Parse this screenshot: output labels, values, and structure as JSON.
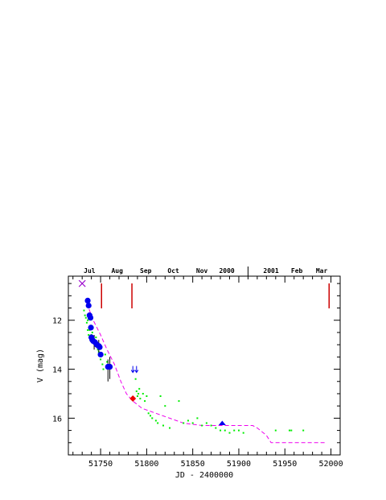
{
  "chart_data": {
    "type": "scatter",
    "title": "",
    "xlabel": "JD - 2400000",
    "ylabel": "V (mag)",
    "xlim": [
      51715,
      52010
    ],
    "ylim": [
      17.5,
      10.2
    ],
    "x_ticks": [
      51750,
      51800,
      51850,
      51900,
      51950,
      52000
    ],
    "x_tick_labels": [
      "51750",
      "51800",
      "51850",
      "51900",
      "51950",
      "52000"
    ],
    "y_ticks": [
      12,
      14,
      16
    ],
    "y_tick_labels": [
      "12",
      "14",
      "16"
    ],
    "month_labels": [
      {
        "jd": 51738,
        "label": "Jul"
      },
      {
        "jd": 51768,
        "label": "Aug"
      },
      {
        "jd": 51799,
        "label": "Sep"
      },
      {
        "jd": 51829,
        "label": "Oct"
      },
      {
        "jd": 51860,
        "label": "Nov"
      },
      {
        "jd": 51887,
        "label": "2000"
      },
      {
        "jd": 51935,
        "label": "2001"
      },
      {
        "jd": 51963,
        "label": "Feb"
      },
      {
        "jd": 51990,
        "label": "Mar"
      }
    ],
    "year_divider_jd": 51910,
    "grid": false,
    "colors": {
      "large_points": "#0000ee",
      "small_points": "#00ee00",
      "model": "#ee00ee",
      "markers": "#cc0000",
      "diamond": "#ee0000",
      "triangle": "#0000ee",
      "cross": "#9900cc",
      "arrows": "#0000ee"
    },
    "series": [
      {
        "kind": "large",
        "x": [
          51736.0,
          51737.0,
          51738.0,
          51739.0,
          51739.5,
          51740.0,
          51741.0,
          51742.0,
          51744.0,
          51746.0,
          51748.0,
          51749.0,
          51750.0,
          51758.0,
          51760.0
        ],
        "y": [
          11.2,
          11.4,
          11.8,
          11.9,
          12.3,
          12.7,
          12.8,
          12.85,
          12.9,
          13.0,
          13.05,
          13.1,
          13.4,
          13.9,
          13.9
        ]
      },
      {
        "kind": "small",
        "x": [
          51732,
          51733,
          51734,
          51735,
          51736,
          51736,
          51737,
          51738,
          51738,
          51739,
          51740,
          51741,
          51742,
          51743,
          51744,
          51745,
          51746,
          51747,
          51748,
          51750,
          51752,
          51753,
          51755,
          51757,
          51760,
          51788,
          51789,
          51790,
          51791,
          51792,
          51793,
          51796,
          51798,
          51800,
          51802,
          51804,
          51806,
          51810,
          51812,
          51815,
          51818,
          51820,
          51825,
          51835,
          51840,
          51845,
          51850,
          51855,
          51860,
          51865,
          51870,
          51875,
          51880,
          51885,
          51890,
          51895,
          51900,
          51905,
          51940,
          51955,
          51957,
          51970
        ],
        "y": [
          11.6,
          11.8,
          11.9,
          12.1,
          12.0,
          12.4,
          12.6,
          12.4,
          12.7,
          12.8,
          12.6,
          12.5,
          12.9,
          12.8,
          13.0,
          12.7,
          13.1,
          13.2,
          13.3,
          13.6,
          13.8,
          14.0,
          13.4,
          13.7,
          13.9,
          14.4,
          14.9,
          15.1,
          15.0,
          14.8,
          15.2,
          15.0,
          15.3,
          15.1,
          15.8,
          15.9,
          16.0,
          16.1,
          16.2,
          15.1,
          16.3,
          15.5,
          16.4,
          15.3,
          16.2,
          16.1,
          16.2,
          16.0,
          16.3,
          16.2,
          16.3,
          16.4,
          16.5,
          16.5,
          16.6,
          16.5,
          16.5,
          16.6,
          16.5,
          16.5,
          16.5,
          16.5
        ]
      },
      {
        "kind": "model",
        "x": [
          51735,
          51742,
          51750,
          51757,
          51765,
          51772,
          51778,
          51785,
          51795,
          51810,
          51825,
          51840,
          51860,
          51880,
          51900,
          51915,
          51920,
          51930,
          51935,
          51960,
          51990,
          51995
        ],
        "y": [
          11.3,
          12.0,
          12.6,
          13.2,
          13.8,
          14.5,
          15.0,
          15.3,
          15.6,
          15.8,
          16.0,
          16.2,
          16.3,
          16.3,
          16.3,
          16.3,
          16.4,
          16.7,
          17.0,
          17.0,
          17.0,
          17.0
        ]
      }
    ],
    "vertical_markers_jd": [
      51751,
      51784,
      51998
    ],
    "error_bars": [
      {
        "x": 51758,
        "y": 13.9,
        "ylow": 13.6,
        "yhigh": 14.5
      },
      {
        "x": 51760,
        "y": 13.9,
        "ylow": 13.5,
        "yhigh": 14.4
      },
      {
        "x": 51743,
        "y": 12.9,
        "ylow": 12.6,
        "yhigh": 13.2
      },
      {
        "x": 51748,
        "y": 13.05,
        "ylow": 12.8,
        "yhigh": 13.3
      }
    ],
    "upper_limits": [
      {
        "x": 51785,
        "y": 14.0
      },
      {
        "x": 51789,
        "y": 14.0
      }
    ],
    "special_points": [
      {
        "shape": "cross",
        "x": 51730,
        "y": 10.5
      },
      {
        "shape": "diamond",
        "x": 51785,
        "y": 15.2
      },
      {
        "shape": "triangle",
        "x": 51882,
        "y": 16.2
      }
    ]
  }
}
